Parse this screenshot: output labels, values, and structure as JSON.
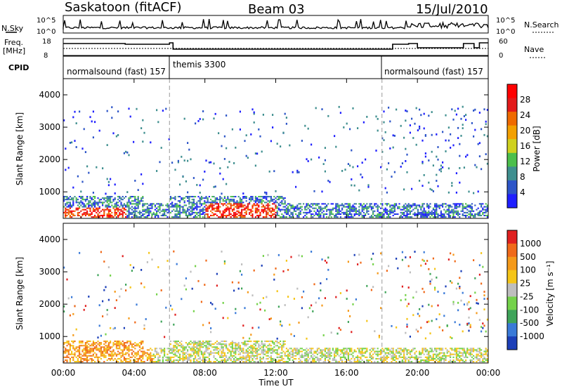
{
  "header": {
    "station": "Saskatoon (fitACF)",
    "beam": "Beam 03",
    "date": "15/Jul/2010"
  },
  "top_panels": {
    "nsky_label": "N.Sky",
    "nsky_ticks": [
      "10^5",
      "10^0"
    ],
    "nsearch_label": "N.Search",
    "nsearch_ticks": [
      "10^5",
      "10^0"
    ],
    "freq_label": "Freq.",
    "freq_unit": "[MHz]",
    "freq_ticks": [
      "18",
      "8"
    ],
    "nave_label": "Nave",
    "nave_ticks": [
      "60",
      "0"
    ],
    "cpid_label": "CPID",
    "cpid_segments": [
      {
        "text": "normalsound (fast) 157",
        "start_h": 0,
        "end_h": 6
      },
      {
        "text": "themis 3300",
        "start_h": 6,
        "end_h": 18
      },
      {
        "text": "normalsound (fast) 157",
        "start_h": 18,
        "end_h": 24
      }
    ]
  },
  "chart_data": [
    {
      "type": "heatmap",
      "ylabel": "Slant Range [km]",
      "yticks": [
        "1000",
        "2000",
        "3000",
        "4000"
      ],
      "ylim": [
        180,
        4500
      ],
      "xlim": [
        0,
        24
      ],
      "colorbar": {
        "label": "Power [dB]",
        "ticks": [
          "4",
          "8",
          "12",
          "16",
          "20",
          "24",
          "28"
        ],
        "colors": [
          "#1f1fff",
          "#2d55c8",
          "#3f8f8f",
          "#4cbf4c",
          "#cfd11f",
          "#f3a000",
          "#ef6a00",
          "#e31a1a",
          "#ff0000"
        ]
      }
    },
    {
      "type": "heatmap",
      "ylabel": "Slant Range [km]",
      "yticks": [
        "1000",
        "2000",
        "3000",
        "4000"
      ],
      "ylim": [
        180,
        4500
      ],
      "xlim": [
        0,
        24
      ],
      "colorbar": {
        "label": "Velocity [m s⁻¹]",
        "ticks": [
          "1000",
          "500",
          "100",
          "25",
          "-25",
          "-100",
          "-500",
          "-1000"
        ],
        "colors": [
          "#1c3fb8",
          "#3a7ad8",
          "#3fa45a",
          "#74d24a",
          "#bebebe",
          "#f5c518",
          "#f59a1a",
          "#f06a1a",
          "#e02020"
        ]
      }
    }
  ],
  "xaxis": {
    "ticks": [
      "00:00",
      "04:00",
      "08:00",
      "12:00",
      "16:00",
      "20:00",
      "00:00"
    ],
    "label": "Time UT"
  }
}
